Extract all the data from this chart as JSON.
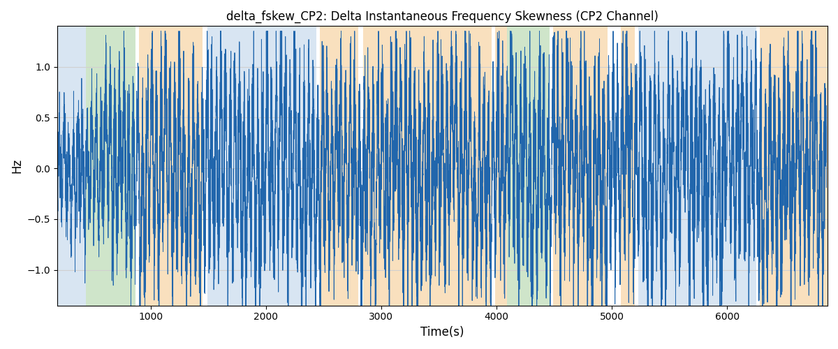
{
  "title": "delta_fskew_CP2: Delta Instantaneous Frequency Skewness (CP2 Channel)",
  "xlabel": "Time(s)",
  "ylabel": "Hz",
  "ylim": [
    -1.35,
    1.4
  ],
  "xlim": [
    190,
    6870
  ],
  "yticks": [
    -1.0,
    -0.5,
    0.0,
    0.5,
    1.0
  ],
  "xticks": [
    1000,
    2000,
    3000,
    4000,
    5000,
    6000
  ],
  "line_color": "#2166ac",
  "line_width": 0.7,
  "bg_bands": [
    {
      "xmin": 190,
      "xmax": 440,
      "color": "#b8d0e8",
      "alpha": 0.55
    },
    {
      "xmin": 440,
      "xmax": 870,
      "color": "#a8d0a0",
      "alpha": 0.55
    },
    {
      "xmin": 900,
      "xmax": 1450,
      "color": "#f5c88a",
      "alpha": 0.55
    },
    {
      "xmin": 1490,
      "xmax": 2440,
      "color": "#b8d0e8",
      "alpha": 0.55
    },
    {
      "xmin": 2470,
      "xmax": 2800,
      "color": "#f5c88a",
      "alpha": 0.55
    },
    {
      "xmin": 2840,
      "xmax": 3960,
      "color": "#f5c88a",
      "alpha": 0.55
    },
    {
      "xmin": 3990,
      "xmax": 4090,
      "color": "#f5c88a",
      "alpha": 0.55
    },
    {
      "xmin": 4090,
      "xmax": 4460,
      "color": "#a8d0a0",
      "alpha": 0.55
    },
    {
      "xmin": 4490,
      "xmax": 4960,
      "color": "#f5c88a",
      "alpha": 0.55
    },
    {
      "xmin": 5080,
      "xmax": 5200,
      "color": "#f5c88a",
      "alpha": 0.55
    },
    {
      "xmin": 5230,
      "xmax": 6250,
      "color": "#b8d0e8",
      "alpha": 0.55
    },
    {
      "xmin": 6280,
      "xmax": 6870,
      "color": "#f5c88a",
      "alpha": 0.55
    }
  ],
  "seed": 42,
  "n_points": 8000,
  "t_start": 195,
  "t_end": 6860
}
